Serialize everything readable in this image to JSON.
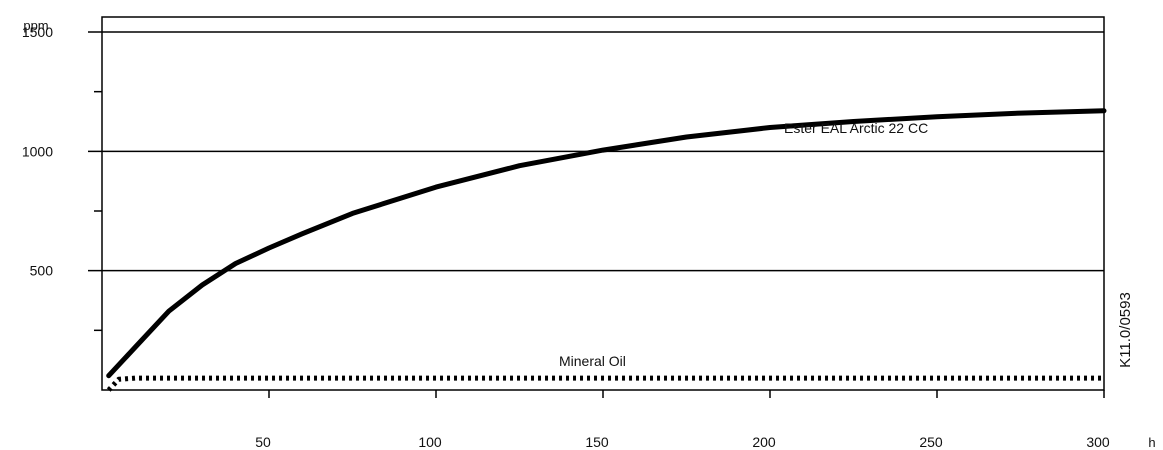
{
  "chart_data": {
    "type": "line",
    "title": "",
    "xlabel": "h",
    "ylabel": "ppm",
    "xlim": [
      0,
      300
    ],
    "ylim": [
      0,
      1500
    ],
    "x_ticks": [
      50,
      100,
      150,
      200,
      250,
      300
    ],
    "x_tick_labels": [
      "50",
      "100",
      "150",
      "200",
      "250",
      "300"
    ],
    "y_ticks": [
      500,
      1000,
      1500
    ],
    "y_tick_labels": [
      "500",
      "1000",
      "1500"
    ],
    "y_minor_ticks": [
      250,
      750,
      1250
    ],
    "grid": "horizontal at labeled y ticks",
    "annotation": "K11.0/0593",
    "series": [
      {
        "name": "Ester EAL Arctic 22 CC",
        "style": "solid-thick",
        "color": "#000000",
        "x": [
          2,
          10,
          20,
          30,
          40,
          50,
          60,
          75,
          100,
          125,
          150,
          175,
          200,
          225,
          250,
          275,
          300
        ],
        "y": [
          60,
          180,
          330,
          440,
          530,
          595,
          655,
          740,
          850,
          940,
          1005,
          1060,
          1100,
          1125,
          1145,
          1160,
          1170
        ]
      },
      {
        "name": "Mineral Oil",
        "style": "dotted-thick",
        "color": "#000000",
        "x": [
          2,
          5,
          10,
          50,
          100,
          150,
          200,
          250,
          300
        ],
        "y": [
          0,
          45,
          50,
          50,
          50,
          50,
          50,
          50,
          50
        ]
      }
    ]
  }
}
